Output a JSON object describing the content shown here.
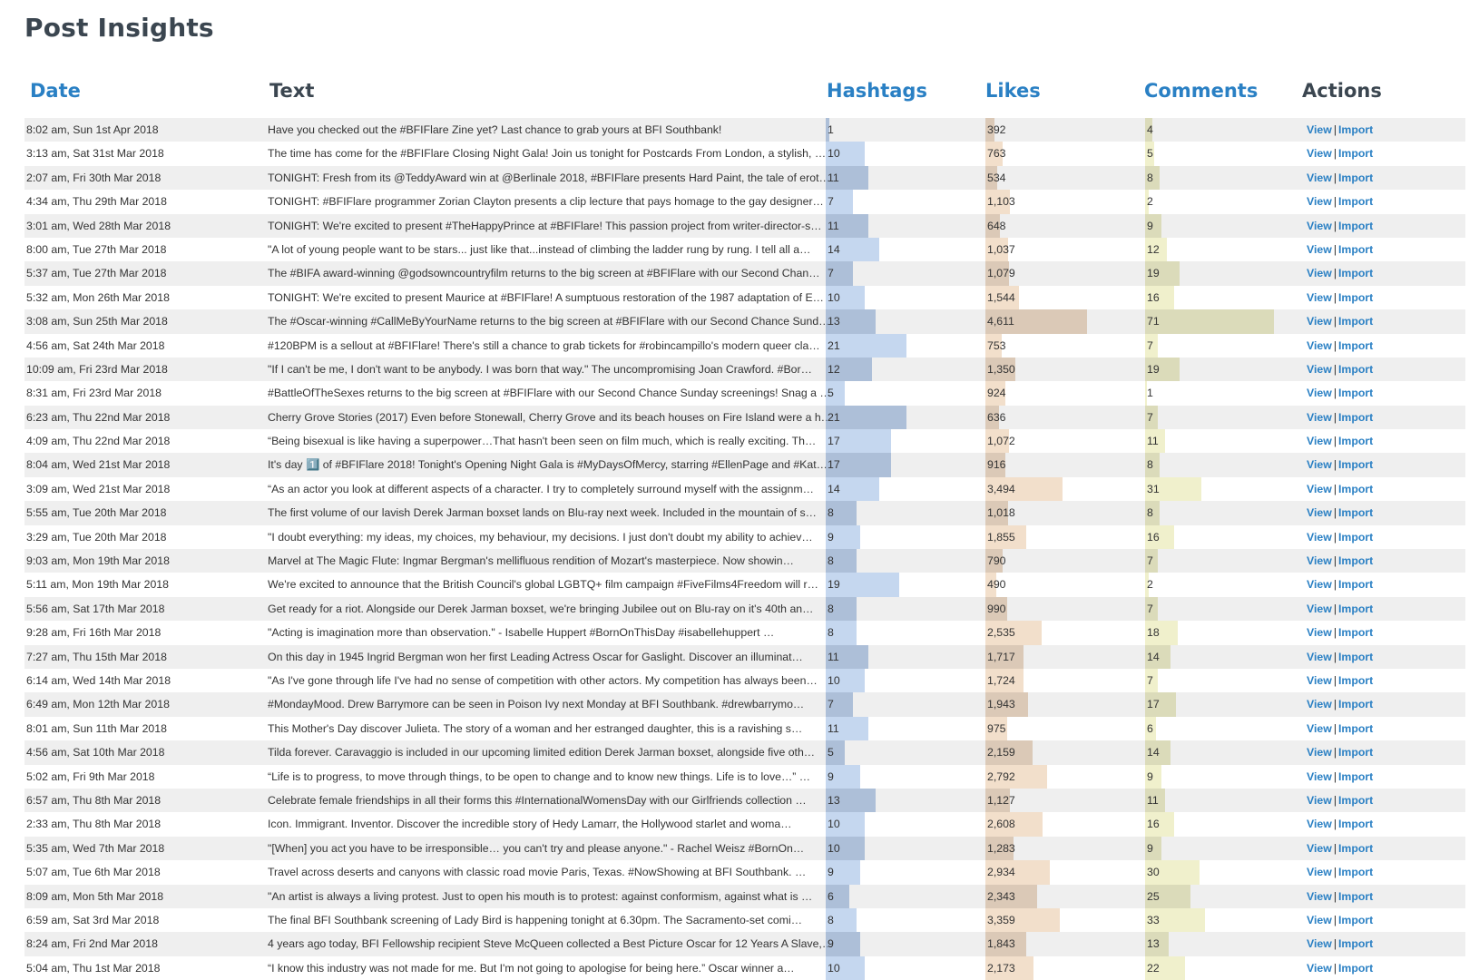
{
  "page_title": "Post Insights",
  "columns": {
    "date": "Date",
    "text": "Text",
    "hashtags": "Hashtags",
    "likes": "Likes",
    "comments": "Comments",
    "actions": "Actions"
  },
  "scale_max": {
    "hashtags": 40,
    "likes": 7000,
    "comments": 85
  },
  "action_labels": {
    "view": "View",
    "separator": "|",
    "import": "Import"
  },
  "rows": [
    {
      "date": "8:02 am, Sun 1st Apr 2018",
      "text": "Have you checked out the #BFIFlare Zine yet? Last chance to grab yours at BFI Southbank!",
      "hashtags": 1,
      "likes": 392,
      "likes_label": "392",
      "comments": 4
    },
    {
      "date": "3:13 am, Sat 31st Mar 2018",
      "text": "The time has come for the #BFIFlare Closing Night Gala! Join us tonight for Postcards From London, a stylish, …",
      "hashtags": 10,
      "likes": 763,
      "likes_label": "763",
      "comments": 5
    },
    {
      "date": "2:07 am, Fri 30th Mar 2018",
      "text": "TONIGHT: Fresh from its @TeddyAward win at @Berlinale 2018, #BFIFlare presents Hard Paint, the tale of erot…",
      "hashtags": 11,
      "likes": 534,
      "likes_label": "534",
      "comments": 8
    },
    {
      "date": "4:34 am, Thu 29th Mar 2018",
      "text": "TONIGHT: #BFIFlare programmer Zorian Clayton presents a clip lecture that pays homage to the gay designer…",
      "hashtags": 7,
      "likes": 1103,
      "likes_label": "1,103",
      "comments": 2
    },
    {
      "date": "3:01 am, Wed 28th Mar 2018",
      "text": "TONIGHT: We're excited to present #TheHappyPrince at #BFIFlare! This passion project from writer-director-s…",
      "hashtags": 11,
      "likes": 648,
      "likes_label": "648",
      "comments": 9
    },
    {
      "date": "8:00 am, Tue 27th Mar 2018",
      "text": "\"A lot of young people want to be stars... just like that...instead of climbing the ladder rung by rung. I tell all a…",
      "hashtags": 14,
      "likes": 1037,
      "likes_label": "1,037",
      "comments": 12
    },
    {
      "date": "5:37 am, Tue 27th Mar 2018",
      "text": "The #BIFA award-winning @godsowncountryfilm returns to the big screen at #BFIFlare with our Second Chan…",
      "hashtags": 7,
      "likes": 1079,
      "likes_label": "1,079",
      "comments": 19
    },
    {
      "date": "5:32 am, Mon 26th Mar 2018",
      "text": "TONIGHT: We're excited to present Maurice at #BFIFlare! A sumptuous restoration of the 1987 adaptation of E…",
      "hashtags": 10,
      "likes": 1544,
      "likes_label": "1,544",
      "comments": 16
    },
    {
      "date": "3:08 am, Sun 25th Mar 2018",
      "text": "The #Oscar-winning #CallMeByYourName returns to the big screen at #BFIFlare with our Second Chance Sund…",
      "hashtags": 13,
      "likes": 4611,
      "likes_label": "4,611",
      "comments": 71
    },
    {
      "date": "4:56 am, Sat 24th Mar 2018",
      "text": "#120BPM is a sellout at #BFIFlare! There's still a chance to grab tickets for #robincampillo's modern queer cla…",
      "hashtags": 21,
      "likes": 753,
      "likes_label": "753",
      "comments": 7
    },
    {
      "date": "10:09 am, Fri 23rd Mar 2018",
      "text": "\"If I can't be me, I don't want to be anybody. I was born that way.\" The uncompromising Joan Crawford. #Bor…",
      "hashtags": 12,
      "likes": 1350,
      "likes_label": "1,350",
      "comments": 19
    },
    {
      "date": "8:31 am, Fri 23rd Mar 2018",
      "text": "#BattleOfTheSexes returns to the big screen at #BFIFlare with our Second Chance Sunday screenings! Snag a …",
      "hashtags": 5,
      "likes": 924,
      "likes_label": "924",
      "comments": 1
    },
    {
      "date": "6:23 am, Thu 22nd Mar 2018",
      "text": "Cherry Grove Stories (2017) Even before Stonewall, Cherry Grove and its beach houses on Fire Island were a h…",
      "hashtags": 21,
      "likes": 636,
      "likes_label": "636",
      "comments": 7
    },
    {
      "date": "4:09 am, Thu 22nd Mar 2018",
      "text": "“Being bisexual is like having a superpower…That hasn't been seen on film much, which is really exciting. Th…",
      "hashtags": 17,
      "likes": 1072,
      "likes_label": "1,072",
      "comments": 11
    },
    {
      "date": "8:04 am, Wed 21st Mar 2018",
      "text": "It's day 1️⃣ of #BFIFlare 2018! Tonight's Opening Night Gala is #MyDaysOfMercy, starring #EllenPage and #Kat…",
      "hashtags": 17,
      "likes": 916,
      "likes_label": "916",
      "comments": 8
    },
    {
      "date": "3:09 am, Wed 21st Mar 2018",
      "text": "“As an actor you look at different aspects of a character. I try to completely surround myself with the assignm…",
      "hashtags": 14,
      "likes": 3494,
      "likes_label": "3,494",
      "comments": 31
    },
    {
      "date": "5:55 am, Tue 20th Mar 2018",
      "text": "The first volume of our lavish Derek Jarman boxset lands on Blu-ray next week. Included in the mountain of s…",
      "hashtags": 8,
      "likes": 1018,
      "likes_label": "1,018",
      "comments": 8
    },
    {
      "date": "3:29 am, Tue 20th Mar 2018",
      "text": "\"I doubt everything: my ideas, my choices, my behaviour, my decisions. I just don't doubt my ability to achiev…",
      "hashtags": 9,
      "likes": 1855,
      "likes_label": "1,855",
      "comments": 16
    },
    {
      "date": "9:03 am, Mon 19th Mar 2018",
      "text": "Marvel at The Magic Flute: Ingmar Bergman's mellifluous rendition of Mozart's masterpiece.       Now showin…",
      "hashtags": 8,
      "likes": 790,
      "likes_label": "790",
      "comments": 7
    },
    {
      "date": "5:11 am, Mon 19th Mar 2018",
      "text": "We're excited to announce that the British Council's global LGBTQ+ film campaign #FiveFilms4Freedom will r…",
      "hashtags": 19,
      "likes": 490,
      "likes_label": "490",
      "comments": 2
    },
    {
      "date": "5:56 am, Sat 17th Mar 2018",
      "text": "Get ready for a riot. Alongside our Derek Jarman boxset, we're bringing Jubilee out on Blu-ray on it's 40th an…",
      "hashtags": 8,
      "likes": 990,
      "likes_label": "990",
      "comments": 7
    },
    {
      "date": "9:28 am, Fri 16th Mar 2018",
      "text": "\"Acting is imagination more than observation.\"       - Isabelle Huppert #BornOnThisDay       #isabellehuppert …",
      "hashtags": 8,
      "likes": 2535,
      "likes_label": "2,535",
      "comments": 18
    },
    {
      "date": "7:27 am, Thu 15th Mar 2018",
      "text": "On this day in 1945 Ingrid Bergman won her first Leading Actress Oscar for Gaslight.       Discover an illuminat…",
      "hashtags": 11,
      "likes": 1717,
      "likes_label": "1,717",
      "comments": 14
    },
    {
      "date": "6:14 am, Wed 14th Mar 2018",
      "text": "\"As I've gone through life I've had no sense of competition with other actors. My competition has always been…",
      "hashtags": 10,
      "likes": 1724,
      "likes_label": "1,724",
      "comments": 7
    },
    {
      "date": "6:49 am, Mon 12th Mar 2018",
      "text": "#MondayMood.       Drew Barrymore can be seen in Poison Ivy next Monday at BFI Southbank. #drewbarrymo…",
      "hashtags": 7,
      "likes": 1943,
      "likes_label": "1,943",
      "comments": 17
    },
    {
      "date": "8:01 am, Sun 11th Mar 2018",
      "text": "This Mother's Day discover Julieta.       The story of a woman and her estranged daughter, this is a ravishing s…",
      "hashtags": 11,
      "likes": 975,
      "likes_label": "975",
      "comments": 6
    },
    {
      "date": "4:56 am, Sat 10th Mar 2018",
      "text": "Tilda forever. Caravaggio is included in our upcoming limited edition Derek Jarman boxset, alongside five oth…",
      "hashtags": 5,
      "likes": 2159,
      "likes_label": "2,159",
      "comments": 14
    },
    {
      "date": "5:02 am, Fri 9th Mar 2018",
      "text": "“Life is to progress, to move through things, to be open to change and to know new things. Life is to love…”   …",
      "hashtags": 9,
      "likes": 2792,
      "likes_label": "2,792",
      "comments": 9
    },
    {
      "date": "6:57 am, Thu 8th Mar 2018",
      "text": "Celebrate female friendships in all their forms this #InternationalWomensDay with our Girlfriends collection …",
      "hashtags": 13,
      "likes": 1127,
      "likes_label": "1,127",
      "comments": 11
    },
    {
      "date": "2:33 am, Thu 8th Mar 2018",
      "text": "Icon. Immigrant. Inventor.       Discover the incredible story of Hedy Lamarr, the Hollywood starlet and woma…",
      "hashtags": 10,
      "likes": 2608,
      "likes_label": "2,608",
      "comments": 16
    },
    {
      "date": "5:35 am, Wed 7th Mar 2018",
      "text": "\"[When] you act you have to be irresponsible… you can't try and please anyone.\"       - Rachel Weisz #BornOn…",
      "hashtags": 10,
      "likes": 1283,
      "likes_label": "1,283",
      "comments": 9
    },
    {
      "date": "5:07 am, Tue 6th Mar 2018",
      "text": "Travel across deserts and canyons with classic road movie Paris, Texas.       #NowShowing at BFI Southbank. …",
      "hashtags": 9,
      "likes": 2934,
      "likes_label": "2,934",
      "comments": 30
    },
    {
      "date": "8:09 am, Mon 5th Mar 2018",
      "text": "\"An artist is always a living protest. Just to open his mouth is to protest: against conformism, against what is …",
      "hashtags": 6,
      "likes": 2343,
      "likes_label": "2,343",
      "comments": 25
    },
    {
      "date": "6:59 am, Sat 3rd Mar 2018",
      "text": "The final BFI Southbank screening of Lady Bird is happening tonight at 6.30pm.       The Sacramento-set comi…",
      "hashtags": 8,
      "likes": 3359,
      "likes_label": "3,359",
      "comments": 33
    },
    {
      "date": "8:24 am, Fri 2nd Mar 2018",
      "text": "4 years ago today, BFI Fellowship recipient Steve McQueen collected a Best Picture Oscar for 12 Years A Slave,…",
      "hashtags": 9,
      "likes": 1843,
      "likes_label": "1,843",
      "comments": 13
    },
    {
      "date": "5:04 am, Thu 1st Mar 2018",
      "text": "“I know this industry was not made for me. But I'm not going to apologise for being here.”       Oscar winner a…",
      "hashtags": 10,
      "likes": 2173,
      "likes_label": "2,173",
      "comments": 22
    }
  ]
}
